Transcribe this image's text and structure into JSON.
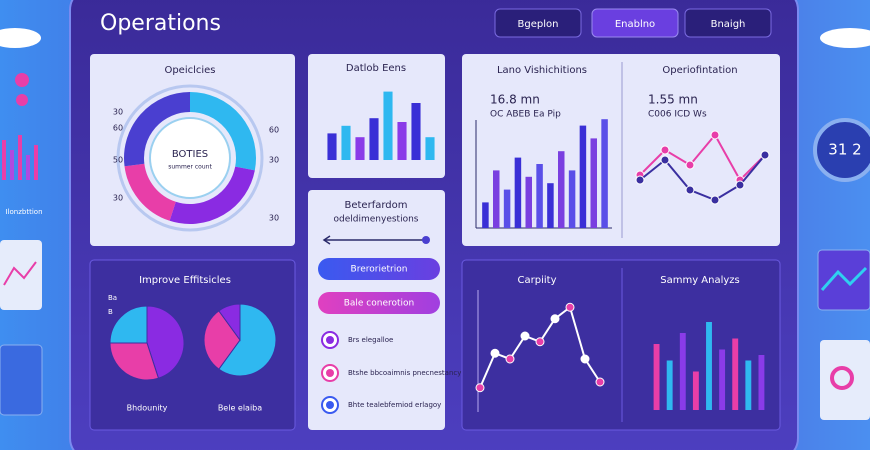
{
  "header": {
    "title": "Operations",
    "buttons": [
      "Bgeplon",
      "Enablno",
      "Bnaigh"
    ]
  },
  "sidebar": {
    "left_label": "Ilonzbttion",
    "right_badge": "31 2"
  },
  "panels": {
    "donut": {
      "type": "donut",
      "title": "Opeiclcies",
      "center_title": "BOTIES",
      "center_subtitle": "summer count",
      "left_labels": [
        30,
        60,
        50,
        30
      ],
      "right_labels": [
        60,
        30,
        30
      ],
      "segments": [
        {
          "color": "#2fb8f0",
          "value": 28
        },
        {
          "color": "#8a2be2",
          "value": 27
        },
        {
          "color": "#e83ea8",
          "value": 18
        },
        {
          "color": "#4a3fd0",
          "value": 27
        }
      ]
    },
    "bars_top": {
      "type": "bar",
      "title": "Datlob Eens",
      "values": [
        35,
        45,
        30,
        55,
        90,
        50,
        75,
        30
      ],
      "colors": [
        "#3a2fd6",
        "#2fb8f0",
        "#8a3be8"
      ],
      "ylim": [
        0,
        100
      ]
    },
    "controls": {
      "title": "Beterfardom",
      "subtitle": "odeldimenyestions",
      "buttons": [
        "Brerorietrion",
        "Bale conerotion"
      ],
      "options": [
        "Brs elegalloe",
        "Btshe bbcoaimnis pnecnestancy",
        "Bhte tealebfemiod erlagoy"
      ]
    },
    "visits": {
      "type": "bar",
      "title": "Lano Vishichitions",
      "metric": "16.8 mn",
      "caption": "OC ABEB Ea Pip",
      "values": [
        20,
        45,
        30,
        55,
        40,
        50,
        35,
        60,
        45,
        80,
        70,
        85
      ],
      "colors": [
        "#3a2fd6",
        "#7a3fe0",
        "#5a4fe8"
      ],
      "ylim": [
        0,
        100
      ]
    },
    "operations": {
      "type": "line",
      "title": "Operiofintation",
      "metric": "1.55 mn",
      "caption": "C006 ICD Ws",
      "series": [
        {
          "color": "#e83ea8",
          "values": [
            45,
            70,
            55,
            85,
            40,
            65
          ]
        },
        {
          "color": "#3a2fa0",
          "values": [
            40,
            60,
            30,
            20,
            35,
            65
          ]
        }
      ],
      "ylim": [
        0,
        100
      ]
    },
    "efficiency": {
      "type": "pie",
      "title": "Improve Effitsicles",
      "markers": [
        "Ba",
        "B"
      ],
      "pies": [
        {
          "label": "Bhdounity",
          "slices": [
            {
              "color": "#8a2be2",
              "value": 45
            },
            {
              "color": "#e83ea8",
              "value": 30
            },
            {
              "color": "#2fb8f0",
              "value": 25
            }
          ]
        },
        {
          "label": "Bele elaiba",
          "slices": [
            {
              "color": "#2fb8f0",
              "value": 60
            },
            {
              "color": "#e83ea8",
              "value": 30
            },
            {
              "color": "#8a2be2",
              "value": 10
            }
          ]
        }
      ]
    },
    "capacity": {
      "type": "line",
      "title": "Carpiity",
      "series": [
        {
          "color": "#ffffff",
          "values": [
            15,
            45,
            40,
            60,
            55,
            75,
            85,
            40,
            20
          ]
        }
      ],
      "point_color": "#e83ea8",
      "ylim": [
        0,
        100
      ]
    },
    "summary": {
      "type": "bar",
      "title": "Sammy Analyzs",
      "values": [
        60,
        45,
        70,
        35,
        80,
        55,
        65,
        45,
        50
      ],
      "colors": [
        "#e83ea8",
        "#2fb8f0",
        "#8a3be8"
      ],
      "ylim": [
        0,
        100
      ]
    }
  }
}
